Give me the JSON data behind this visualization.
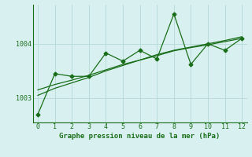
{
  "x": [
    0,
    1,
    2,
    3,
    4,
    5,
    6,
    7,
    8,
    9,
    10,
    11,
    12
  ],
  "y_main": [
    1002.7,
    1003.45,
    1003.4,
    1003.4,
    1003.83,
    1003.68,
    1003.88,
    1003.72,
    1004.55,
    1003.62,
    1004.0,
    1003.88,
    1004.1
  ],
  "y_trend1": [
    1003.05,
    1003.18,
    1003.28,
    1003.38,
    1003.5,
    1003.6,
    1003.7,
    1003.78,
    1003.87,
    1003.93,
    1003.98,
    1004.04,
    1004.1
  ],
  "y_trend2": [
    1003.15,
    1003.25,
    1003.33,
    1003.42,
    1003.52,
    1003.62,
    1003.7,
    1003.8,
    1003.88,
    1003.94,
    1004.0,
    1004.06,
    1004.13
  ],
  "xlim": [
    -0.3,
    12.3
  ],
  "ylim": [
    1002.55,
    1004.72
  ],
  "yticks": [
    1003,
    1004
  ],
  "xticks": [
    0,
    1,
    2,
    3,
    4,
    5,
    6,
    7,
    8,
    9,
    10,
    11,
    12
  ],
  "xlabel": "Graphe pression niveau de la mer (hPa)",
  "line_color": "#1a6e1a",
  "bg_color": "#d8f0f0",
  "grid_color": "#b0d4d4",
  "marker": "D",
  "marker_size": 2.5,
  "linewidth": 0.9
}
